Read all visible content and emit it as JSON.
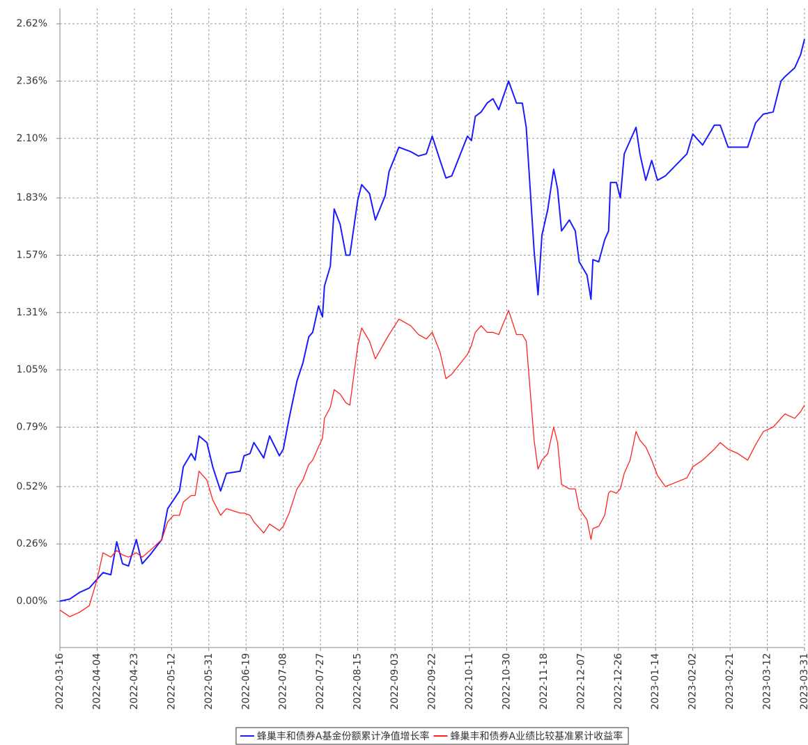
{
  "chart_data": {
    "type": "line",
    "x": [
      "2022-03-16",
      "2022-03-21",
      "2022-03-26",
      "2022-03-31",
      "2022-04-04",
      "2022-04-07",
      "2022-04-11",
      "2022-04-14",
      "2022-04-17",
      "2022-04-20",
      "2022-04-24",
      "2022-04-27",
      "2022-05-01",
      "2022-05-07",
      "2022-05-10",
      "2022-05-13",
      "2022-05-16",
      "2022-05-18",
      "2022-05-22",
      "2022-05-24",
      "2022-05-26",
      "2022-05-30",
      "2022-06-02",
      "2022-06-06",
      "2022-06-09",
      "2022-06-16",
      "2022-06-18",
      "2022-06-21",
      "2022-06-23",
      "2022-06-28",
      "2022-07-01",
      "2022-07-06",
      "2022-07-08",
      "2022-07-11",
      "2022-07-15",
      "2022-07-18",
      "2022-07-21",
      "2022-07-23",
      "2022-07-26",
      "2022-07-28",
      "2022-07-29",
      "2022-08-01",
      "2022-08-03",
      "2022-08-06",
      "2022-08-09",
      "2022-08-11",
      "2022-08-15",
      "2022-08-17",
      "2022-08-21",
      "2022-08-24",
      "2022-08-29",
      "2022-08-31",
      "2022-09-05",
      "2022-09-11",
      "2022-09-15",
      "2022-09-19",
      "2022-09-22",
      "2022-09-26",
      "2022-09-29",
      "2022-10-02",
      "2022-10-10",
      "2022-10-12",
      "2022-10-14",
      "2022-10-17",
      "2022-10-20",
      "2022-10-23",
      "2022-10-26",
      "2022-10-31",
      "2022-11-04",
      "2022-11-07",
      "2022-11-09",
      "2022-11-13",
      "2022-11-15",
      "2022-11-17",
      "2022-11-20",
      "2022-11-23",
      "2022-11-25",
      "2022-11-27",
      "2022-12-01",
      "2022-12-04",
      "2022-12-06",
      "2022-12-10",
      "2022-12-12",
      "2022-12-13",
      "2022-12-16",
      "2022-12-19",
      "2022-12-21",
      "2022-12-22",
      "2022-12-25",
      "2022-12-27",
      "2022-12-29",
      "2023-01-01",
      "2023-01-04",
      "2023-01-06",
      "2023-01-09",
      "2023-01-12",
      "2023-01-15",
      "2023-01-19",
      "2023-01-30",
      "2023-02-02",
      "2023-02-07",
      "2023-02-13",
      "2023-02-16",
      "2023-02-20",
      "2023-02-25",
      "2023-03-02",
      "2023-03-06",
      "2023-03-10",
      "2023-03-15",
      "2023-03-19",
      "2023-03-21",
      "2023-03-26",
      "2023-03-29",
      "2023-03-31"
    ],
    "series": [
      {
        "name": "蜂巢丰和债券A基金份额累计净值增长率",
        "color": "#1a1aff",
        "values": [
          0.0,
          0.01,
          0.04,
          0.06,
          0.1,
          0.13,
          0.12,
          0.27,
          0.17,
          0.16,
          0.28,
          0.17,
          0.21,
          0.28,
          0.42,
          0.46,
          0.5,
          0.61,
          0.67,
          0.64,
          0.75,
          0.72,
          0.61,
          0.5,
          0.58,
          0.59,
          0.66,
          0.67,
          0.72,
          0.65,
          0.75,
          0.66,
          0.69,
          0.83,
          1.0,
          1.08,
          1.2,
          1.22,
          1.34,
          1.29,
          1.43,
          1.52,
          1.78,
          1.71,
          1.57,
          1.57,
          1.82,
          1.89,
          1.85,
          1.73,
          1.84,
          1.95,
          2.06,
          2.04,
          2.02,
          2.03,
          2.11,
          2.0,
          1.92,
          1.93,
          2.11,
          2.09,
          2.2,
          2.22,
          2.26,
          2.28,
          2.23,
          2.36,
          2.26,
          2.26,
          2.15,
          1.59,
          1.39,
          1.66,
          1.78,
          1.96,
          1.87,
          1.68,
          1.73,
          1.68,
          1.54,
          1.48,
          1.37,
          1.55,
          1.54,
          1.64,
          1.68,
          1.9,
          1.9,
          1.83,
          2.03,
          2.09,
          2.15,
          2.03,
          1.91,
          2.0,
          1.91,
          1.93,
          2.03,
          2.12,
          2.07,
          2.16,
          2.16,
          2.06,
          2.06,
          2.06,
          2.17,
          2.21,
          2.22,
          2.36,
          2.38,
          2.42,
          2.48,
          2.55
        ]
      },
      {
        "name": "蜂巢丰和债券A业绩比较基准累计收益率",
        "color": "#ff2020",
        "values": [
          -0.04,
          -0.07,
          -0.05,
          -0.02,
          0.1,
          0.22,
          0.2,
          0.23,
          0.21,
          0.2,
          0.22,
          0.2,
          0.23,
          0.28,
          0.36,
          0.39,
          0.39,
          0.45,
          0.48,
          0.48,
          0.59,
          0.55,
          0.46,
          0.39,
          0.42,
          0.4,
          0.4,
          0.39,
          0.36,
          0.31,
          0.35,
          0.32,
          0.34,
          0.4,
          0.51,
          0.55,
          0.62,
          0.64,
          0.7,
          0.74,
          0.83,
          0.88,
          0.96,
          0.94,
          0.9,
          0.89,
          1.16,
          1.24,
          1.18,
          1.1,
          1.18,
          1.21,
          1.28,
          1.25,
          1.21,
          1.19,
          1.22,
          1.13,
          1.01,
          1.03,
          1.12,
          1.16,
          1.22,
          1.25,
          1.22,
          1.22,
          1.21,
          1.32,
          1.21,
          1.21,
          1.18,
          0.73,
          0.6,
          0.64,
          0.67,
          0.79,
          0.72,
          0.53,
          0.51,
          0.51,
          0.42,
          0.37,
          0.28,
          0.33,
          0.34,
          0.39,
          0.49,
          0.5,
          0.49,
          0.51,
          0.58,
          0.64,
          0.77,
          0.73,
          0.7,
          0.64,
          0.57,
          0.52,
          0.56,
          0.61,
          0.64,
          0.69,
          0.72,
          0.69,
          0.67,
          0.64,
          0.71,
          0.77,
          0.79,
          0.83,
          0.85,
          0.83,
          0.86,
          0.89
        ]
      }
    ],
    "xlim": [
      "2022-03-16",
      "2023-03-31"
    ],
    "xticks": [
      "2022-03-16",
      "2022-04-04",
      "2022-04-23",
      "2022-05-12",
      "2022-05-31",
      "2022-06-19",
      "2022-07-08",
      "2022-07-27",
      "2022-08-15",
      "2022-09-03",
      "2022-09-22",
      "2022-10-11",
      "2022-10-30",
      "2022-11-18",
      "2022-12-07",
      "2022-12-26",
      "2023-01-14",
      "2023-02-02",
      "2023-02-21",
      "2023-03-12",
      "2023-03-31"
    ],
    "ylim": [
      -0.21,
      2.69
    ],
    "yticks": [
      {
        "value": 0,
        "label": "0.00%"
      },
      {
        "value": 0.26,
        "label": "0.26%"
      },
      {
        "value": 0.52,
        "label": "0.52%"
      },
      {
        "value": 0.79,
        "label": "0.79%"
      },
      {
        "value": 1.05,
        "label": "1.05%"
      },
      {
        "value": 1.31,
        "label": "1.31%"
      },
      {
        "value": 1.57,
        "label": "1.57%"
      },
      {
        "value": 1.83,
        "label": "1.83%"
      },
      {
        "value": 2.1,
        "label": "2.10%"
      },
      {
        "value": 2.36,
        "label": "2.36%"
      },
      {
        "value": 2.62,
        "label": "2.62%"
      }
    ],
    "grid": true,
    "legend": "bottom"
  }
}
